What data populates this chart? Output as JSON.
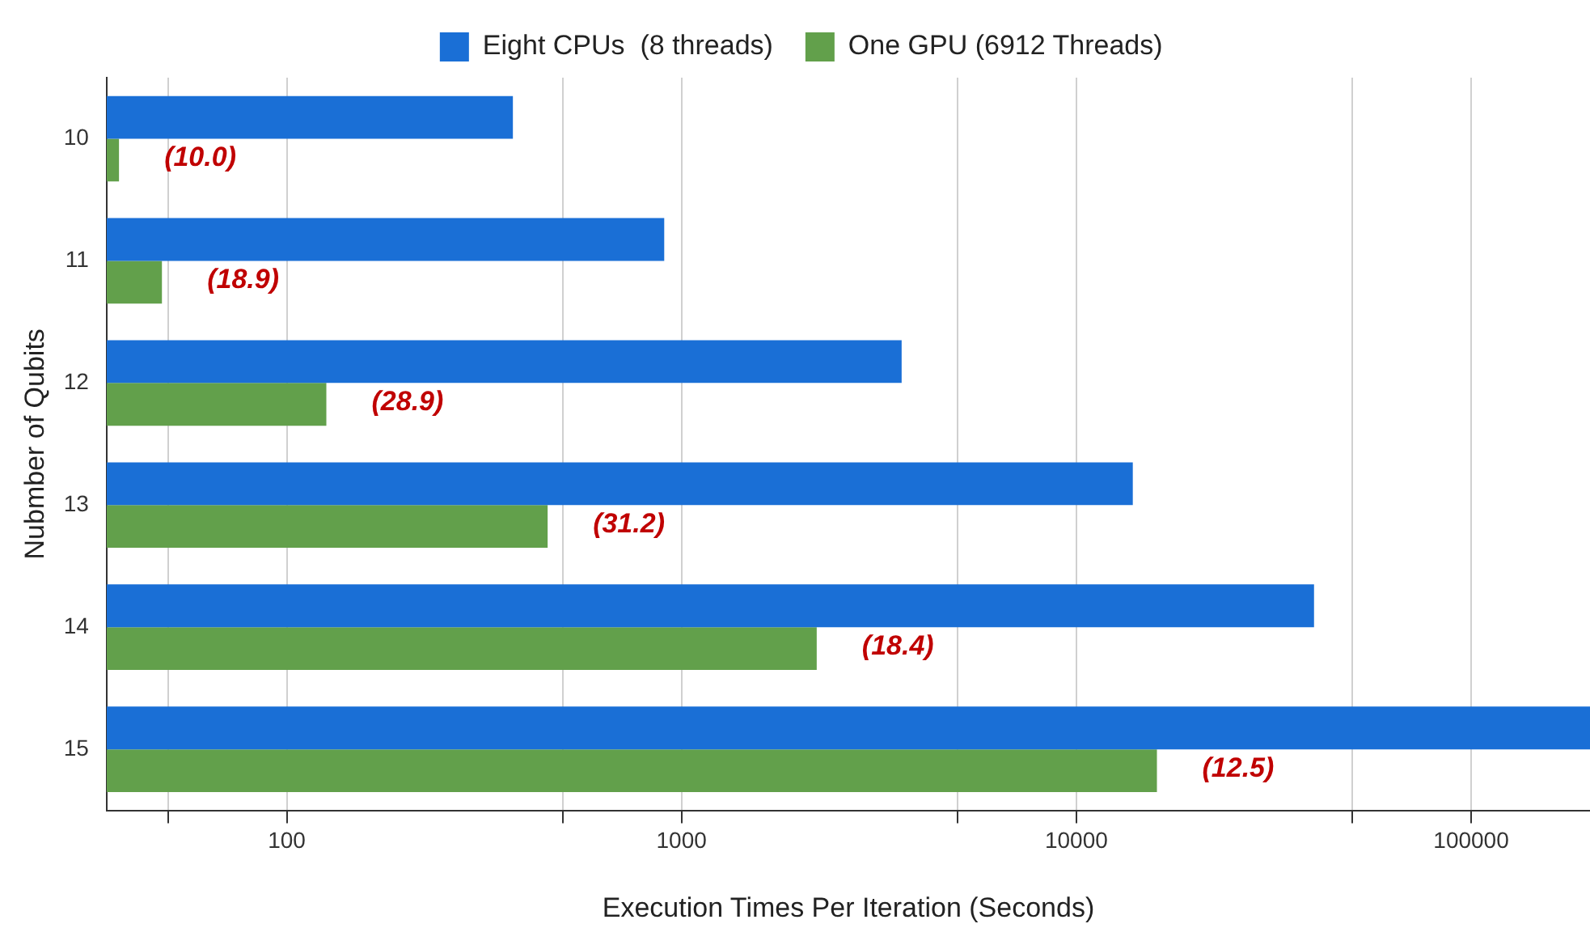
{
  "chart_data": {
    "type": "bar",
    "orientation": "horizontal",
    "xlabel": "Execution Times Per Iteration (Seconds)",
    "ylabel": "Nubmber of Qubits",
    "categories": [
      "10",
      "11",
      "12",
      "13",
      "14",
      "15"
    ],
    "series": [
      {
        "name": "Eight CPUs  (8 threads)",
        "color": "#1a6fd6",
        "values": [
          374,
          904,
          3610,
          13900,
          40000,
          200000
        ]
      },
      {
        "name": "One GPU (6912 Threads)",
        "color": "#62a04b",
        "values": [
          37.6,
          48.3,
          126,
          458,
          2200,
          16000
        ]
      }
    ],
    "log": "x",
    "xlim": [
      35,
      200000
    ],
    "xticks": [
      {
        "value": 50,
        "label": null
      },
      100,
      {
        "value": 500,
        "label": null
      },
      1000,
      {
        "value": 5000,
        "label": null
      },
      10000,
      {
        "value": 50000,
        "label": null
      },
      100000
    ],
    "grid": "x",
    "legend": "top",
    "annotations": [
      {
        "text": "(10.0)",
        "x": 37.6,
        "y": "10"
      },
      {
        "text": "(18.9)",
        "x": 48.3,
        "y": "11"
      },
      {
        "text": "(28.9)",
        "x": 126,
        "y": "12"
      },
      {
        "text": "(31.2)",
        "x": 458,
        "y": "13"
      },
      {
        "text": "(18.4)",
        "x": 2200,
        "y": "14"
      },
      {
        "text": "(12.5)",
        "x": 16000,
        "y": "15"
      }
    ]
  }
}
